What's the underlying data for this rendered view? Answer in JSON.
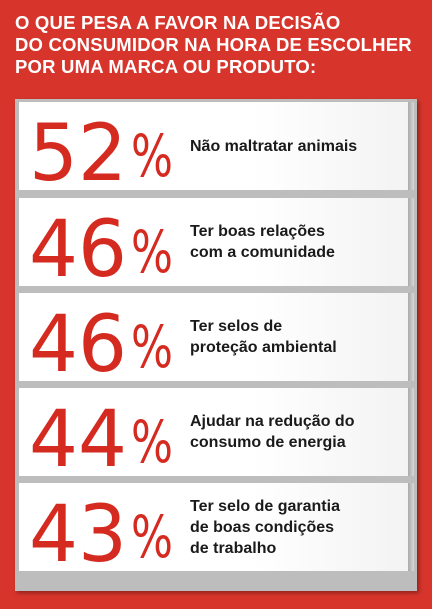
{
  "title_lines": [
    "O QUE PESA A FAVOR NA DECISÃO",
    "DO CONSUMIDOR NA HORA DE ESCOLHER",
    "POR UMA MARCA OU PRODUTO:"
  ],
  "colors": {
    "background": "#d7352c",
    "number": "#d42a20",
    "panel": "#bdbdbd",
    "row": "#ffffff",
    "text": "#1a1a1a"
  },
  "chart_data": {
    "type": "table",
    "title": "O QUE PESA A FAVOR NA DECISÃO DO CONSUMIDOR NA HORA DE ESCOLHER POR UMA MARCA OU PRODUTO:",
    "unit": "%",
    "categories": [
      "Não maltratar animais",
      "Ter boas relações com a comunidade",
      "Ter selos de proteção ambiental",
      "Ajudar na redução do consumo de energia",
      "Ter selo de garantia de boas condições de trabalho"
    ],
    "values": [
      52,
      46,
      46,
      44,
      43
    ],
    "rows": [
      {
        "value": 52,
        "pct_text": "52",
        "label": "Não maltratar animais"
      },
      {
        "value": 46,
        "pct_text": "46",
        "label": "Ter boas relações\ncom a comunidade"
      },
      {
        "value": 46,
        "pct_text": "46",
        "label": "Ter selos de\nproteção ambiental"
      },
      {
        "value": 44,
        "pct_text": "44",
        "label": "Ajudar na redução do\nconsumo de energia"
      },
      {
        "value": 43,
        "pct_text": "43",
        "label": "Ter selo de garantia\nde boas condições\nde trabalho"
      }
    ]
  }
}
